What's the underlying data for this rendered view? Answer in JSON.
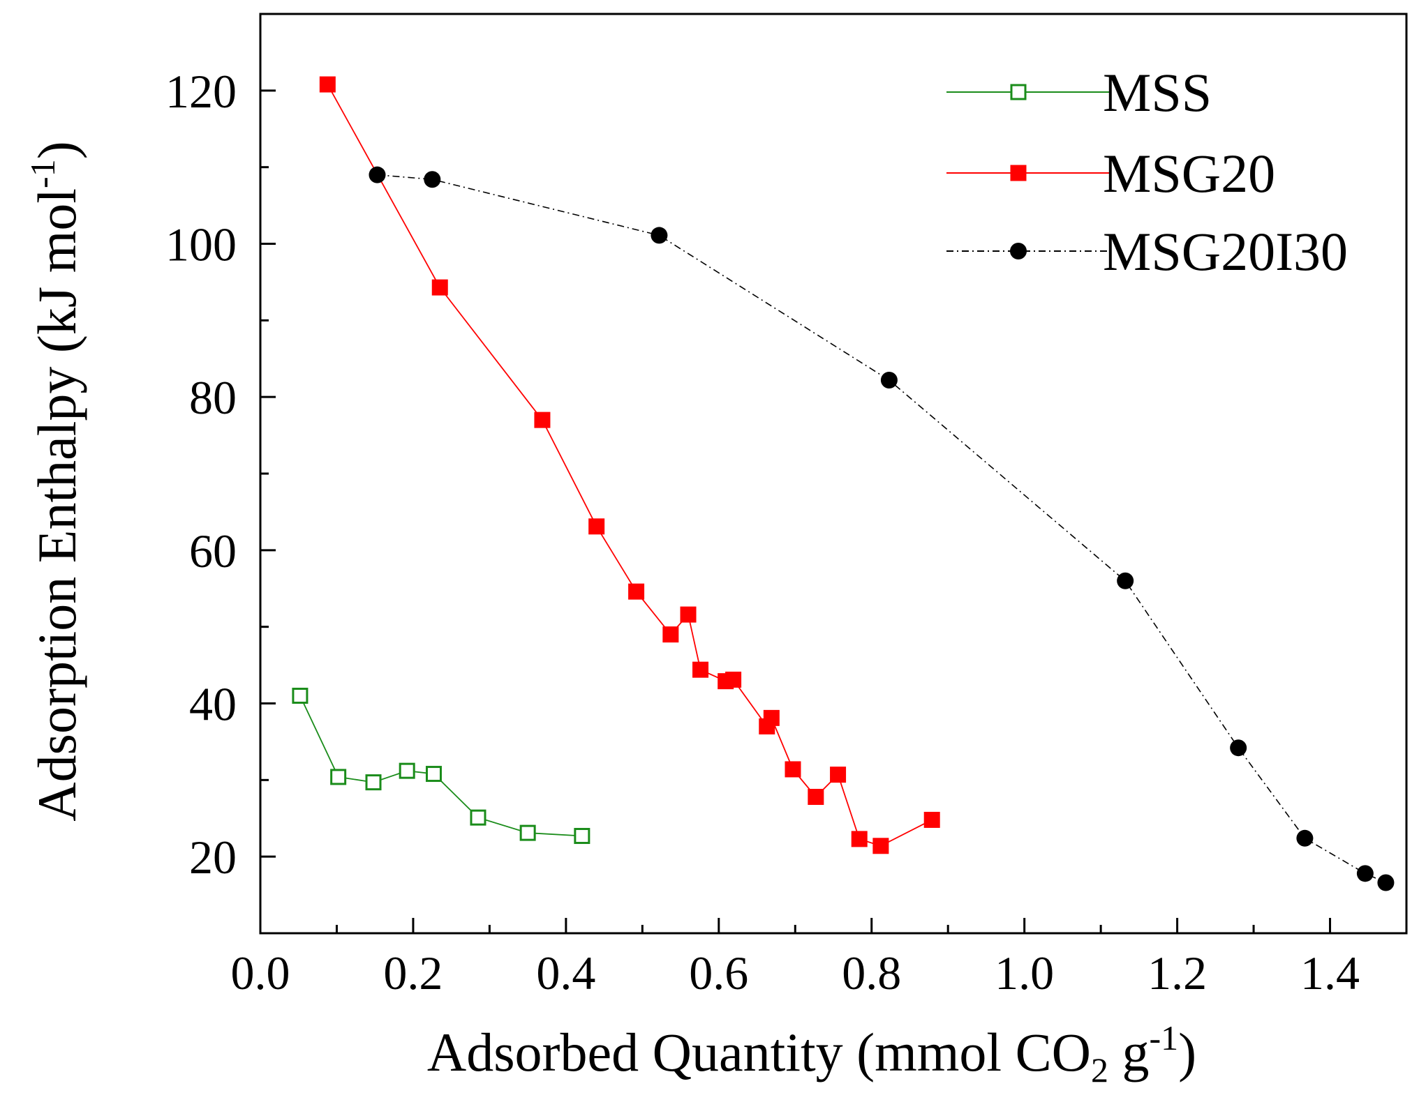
{
  "chart_data": {
    "type": "line",
    "title": "",
    "xlabel": "Adsorbed Quantity (mmol CO",
    "xlabel_sub": "2",
    "xlabel_mid": " g",
    "xlabel_sup": "-1",
    "xlabel_end": ")",
    "ylabel": "Adsorption Enthalpy (kJ mol",
    "ylabel_sup": "-1",
    "ylabel_end": ")",
    "xlim": [
      0.0,
      1.5
    ],
    "ylim": [
      10,
      130
    ],
    "xticks": [
      0.0,
      0.2,
      0.4,
      0.6,
      0.8,
      1.0,
      1.2,
      1.4
    ],
    "xtick_labels": [
      "0.0",
      "0.2",
      "0.4",
      "0.6",
      "0.8",
      "1.0",
      "1.2",
      "1.4"
    ],
    "yticks": [
      20,
      40,
      60,
      80,
      100,
      120
    ],
    "ytick_labels": [
      "20",
      "40",
      "60",
      "80",
      "100",
      "120"
    ],
    "grid": false,
    "legend_position": "top-right",
    "series": [
      {
        "name": "MSS",
        "color": "#1a8c1a",
        "marker": "square-open",
        "line": "solid",
        "x": [
          0.052,
          0.102,
          0.148,
          0.192,
          0.227,
          0.285,
          0.35,
          0.421
        ],
        "y": [
          41.0,
          30.4,
          29.7,
          31.2,
          30.8,
          25.1,
          23.1,
          22.7
        ]
      },
      {
        "name": "MSG20",
        "color": "#ff0000",
        "marker": "square-filled",
        "line": "solid",
        "x": [
          0.088,
          0.235,
          0.369,
          0.44,
          0.492,
          0.537,
          0.56,
          0.576,
          0.609,
          0.619,
          0.663,
          0.669,
          0.697,
          0.727,
          0.756,
          0.784,
          0.812,
          0.879
        ],
        "y": [
          120.8,
          94.3,
          77.0,
          63.1,
          54.6,
          49.0,
          51.6,
          44.4,
          42.9,
          43.1,
          37.0,
          38.1,
          31.4,
          27.8,
          30.7,
          22.3,
          21.4,
          24.8
        ]
      },
      {
        "name": "MSG20I30",
        "color": "#000000",
        "marker": "circle-filled",
        "line": "dash-dot",
        "x": [
          0.153,
          0.225,
          0.522,
          0.823,
          1.132,
          1.28,
          1.367,
          1.446,
          1.473
        ],
        "y": [
          109.0,
          108.4,
          101.1,
          82.2,
          56.0,
          34.2,
          22.4,
          17.8,
          16.6
        ]
      }
    ]
  }
}
